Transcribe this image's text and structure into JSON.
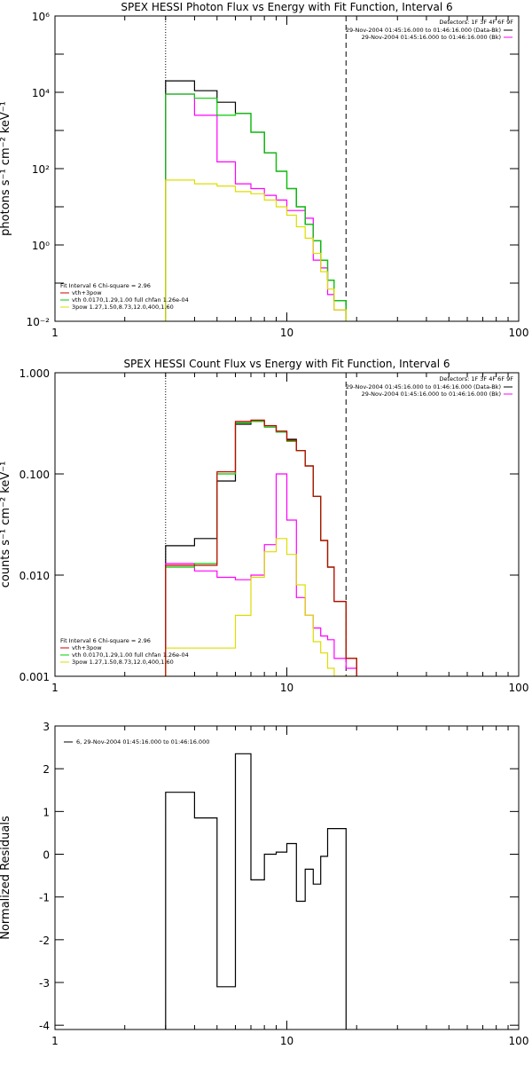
{
  "chart_data": [
    {
      "type": "line",
      "title": "SPEX HESSI Photon Flux vs Energy with Fit Function, Interval 6",
      "xlabel": "",
      "ylabel": "photons s⁻¹ cm⁻² keV⁻¹",
      "x_scale": "log",
      "y_scale": "log",
      "xlim": [
        1,
        100
      ],
      "ylim": [
        0.01,
        1000000
      ],
      "x_ticks": [
        {
          "v": 1,
          "label": "1"
        },
        {
          "v": 10,
          "label": "10"
        },
        {
          "v": 100,
          "label": "100"
        }
      ],
      "y_ticks": [
        {
          "v": 0.01,
          "label": "10⁻²"
        },
        {
          "v": 1,
          "label": "10⁰"
        },
        {
          "v": 100,
          "label": "10²"
        },
        {
          "v": 10000,
          "label": "10⁴"
        },
        {
          "v": 1000000,
          "label": "10⁶"
        }
      ],
      "vlines": [
        {
          "x": 3.0,
          "style": "dotted"
        },
        {
          "x": 18.0,
          "style": "dashed"
        }
      ],
      "edges": [
        3.0,
        4.0,
        5.0,
        6.0,
        7.0,
        8.0,
        9.0,
        10.0,
        11.0,
        12.0,
        13.0,
        14.0,
        15.0,
        16.0,
        18.0,
        20.0
      ],
      "series": [
        {
          "color": "#000000",
          "values": [
            20000,
            11000,
            5500,
            2800,
            900,
            260,
            85,
            30,
            10,
            3.5,
            1.3,
            0.4,
            0.12,
            0.035,
            0.005
          ]
        },
        {
          "color": "#ff00ff",
          "values": [
            9000,
            2500,
            150,
            40,
            30,
            20,
            15,
            8,
            8,
            5,
            0.4,
            0.25,
            0.05,
            0.02,
            0.005
          ]
        },
        {
          "color": "#00cc00",
          "values": [
            9000,
            7000,
            2500,
            2800,
            900,
            260,
            85,
            30,
            10,
            3.5,
            1.3,
            0.4,
            0.12,
            0.035,
            0.005
          ]
        },
        {
          "color": "#dddd00",
          "values": [
            50,
            40,
            35,
            25,
            22,
            15,
            10,
            6,
            3,
            1.5,
            0.6,
            0.2,
            0.07,
            0.02,
            0.005
          ]
        }
      ],
      "detectors": "Detectors: 1F 3F 4F 6F 9F",
      "legend_right": [
        {
          "text": "29-Nov-2004 01:45:16.000 to 01:46:16.000 (Data-Bk)",
          "color": "#000000"
        },
        {
          "text": "29-Nov-2004 01:45:16.000 to 01:46:16.000 (Bk)",
          "color": "#ff00ff"
        }
      ],
      "fit_info": "Fit Interval 6   Chi-square = 2.96",
      "legend_left": [
        {
          "text": "vth+3pow",
          "color": "#cc0000"
        },
        {
          "text": "vth 0.0170,1.29,1.00  full chfan 1.26e-04",
          "color": "#00cc00"
        },
        {
          "text": "3pow 1.27,1.50,8.73,12.0,400,1.60",
          "color": "#dddd00"
        }
      ]
    },
    {
      "type": "line",
      "title": "SPEX HESSI Count Flux vs Energy with Fit Function, Interval 6",
      "xlabel": "",
      "ylabel": "counts s⁻¹ cm⁻² keV⁻¹",
      "x_scale": "log",
      "y_scale": "log",
      "xlim": [
        1,
        100
      ],
      "ylim": [
        0.001,
        1
      ],
      "x_ticks": [
        {
          "v": 1,
          "label": "1"
        },
        {
          "v": 10,
          "label": "10"
        },
        {
          "v": 100,
          "label": "100"
        }
      ],
      "y_ticks": [
        {
          "v": 0.001,
          "label": "0.001"
        },
        {
          "v": 0.01,
          "label": "0.010"
        },
        {
          "v": 0.1,
          "label": "0.100"
        },
        {
          "v": 1,
          "label": "1.000"
        }
      ],
      "vlines": [
        {
          "x": 3.0,
          "style": "dotted"
        },
        {
          "x": 18.0,
          "style": "dashed"
        }
      ],
      "edges": [
        3.0,
        4.0,
        5.0,
        6.0,
        7.0,
        8.0,
        9.0,
        10.0,
        11.0,
        12.0,
        13.0,
        14.0,
        15.0,
        16.0,
        18.0,
        20.0
      ],
      "series": [
        {
          "color": "#000000",
          "values": [
            0.0195,
            0.023,
            0.085,
            0.31,
            0.33,
            0.3,
            0.26,
            0.22,
            0.17,
            0.12,
            0.06,
            0.022,
            0.012,
            0.0055,
            0.0015
          ]
        },
        {
          "color": "#ff00ff",
          "values": [
            0.013,
            0.011,
            0.0095,
            0.009,
            0.01,
            0.02,
            0.1,
            0.035,
            0.006,
            0.004,
            0.003,
            0.0025,
            0.0023,
            0.0015,
            0.0012
          ]
        },
        {
          "color": "#00cc00",
          "values": [
            0.012,
            0.013,
            0.1,
            0.32,
            0.33,
            0.29,
            0.26,
            0.21,
            0.17,
            0.12,
            0.06,
            0.022,
            0.012,
            0.0055,
            0.0015
          ]
        },
        {
          "color": "#dddd00",
          "values": [
            0.0019,
            0.0019,
            0.0019,
            0.004,
            0.0095,
            0.017,
            0.023,
            0.016,
            0.008,
            0.004,
            0.0022,
            0.0017,
            0.0012,
            0.001,
            0.001
          ]
        },
        {
          "color": "#cc0000",
          "values": [
            0.0125,
            0.0125,
            0.105,
            0.33,
            0.34,
            0.3,
            0.265,
            0.215,
            0.17,
            0.12,
            0.06,
            0.022,
            0.012,
            0.0055,
            0.0015
          ]
        }
      ],
      "detectors": "Detectors: 1F 3F 4F 6F 9F",
      "legend_right": [
        {
          "text": "29-Nov-2004 01:45:16.000 to 01:46:16.000 (Data-Bk)",
          "color": "#000000"
        },
        {
          "text": "29-Nov-2004 01:45:16.000 to 01:46:16.000 (Bk)",
          "color": "#ff00ff"
        }
      ],
      "fit_info": "Fit Interval 6   Chi-square = 2.96",
      "legend_left": [
        {
          "text": "vth+3pow",
          "color": "#cc0000"
        },
        {
          "text": "vth 0.0170,1.29,1.00  full chfan 1.26e-04",
          "color": "#00cc00"
        },
        {
          "text": "3pow 1.27,1.50,8.73,12.0,400,1.60",
          "color": "#dddd00"
        }
      ]
    },
    {
      "type": "line",
      "title": "",
      "xlabel": "",
      "ylabel": "Normalized Residuals",
      "x_scale": "log",
      "y_scale": "linear",
      "xlim": [
        1,
        100
      ],
      "ylim": [
        -4.1,
        3
      ],
      "x_ticks": [
        {
          "v": 1,
          "label": "1"
        },
        {
          "v": 10,
          "label": "10"
        },
        {
          "v": 100,
          "label": "100"
        }
      ],
      "y_ticks": [
        {
          "v": -4,
          "label": "-4"
        },
        {
          "v": -3,
          "label": "-3"
        },
        {
          "v": -2,
          "label": "-2"
        },
        {
          "v": -1,
          "label": "-1"
        },
        {
          "v": 0,
          "label": "0"
        },
        {
          "v": 1,
          "label": "1"
        },
        {
          "v": 2,
          "label": "2"
        },
        {
          "v": 3,
          "label": "3"
        }
      ],
      "edges": [
        3.0,
        4.0,
        5.0,
        6.0,
        7.0,
        8.0,
        9.0,
        10.0,
        11.0,
        12.0,
        13.0,
        14.0,
        15.0,
        16.0,
        18.0
      ],
      "series": [
        {
          "color": "#000000",
          "values": [
            1.45,
            0.85,
            -3.1,
            2.35,
            -0.6,
            0.0,
            0.05,
            0.25,
            -1.1,
            -0.35,
            -0.7,
            -0.05,
            0.6,
            0.6
          ]
        }
      ],
      "legend_left": [
        {
          "text": "6, 29-Nov-2004 01:45:16.000 to 01:46:16.000",
          "color": "#000000"
        }
      ]
    }
  ]
}
